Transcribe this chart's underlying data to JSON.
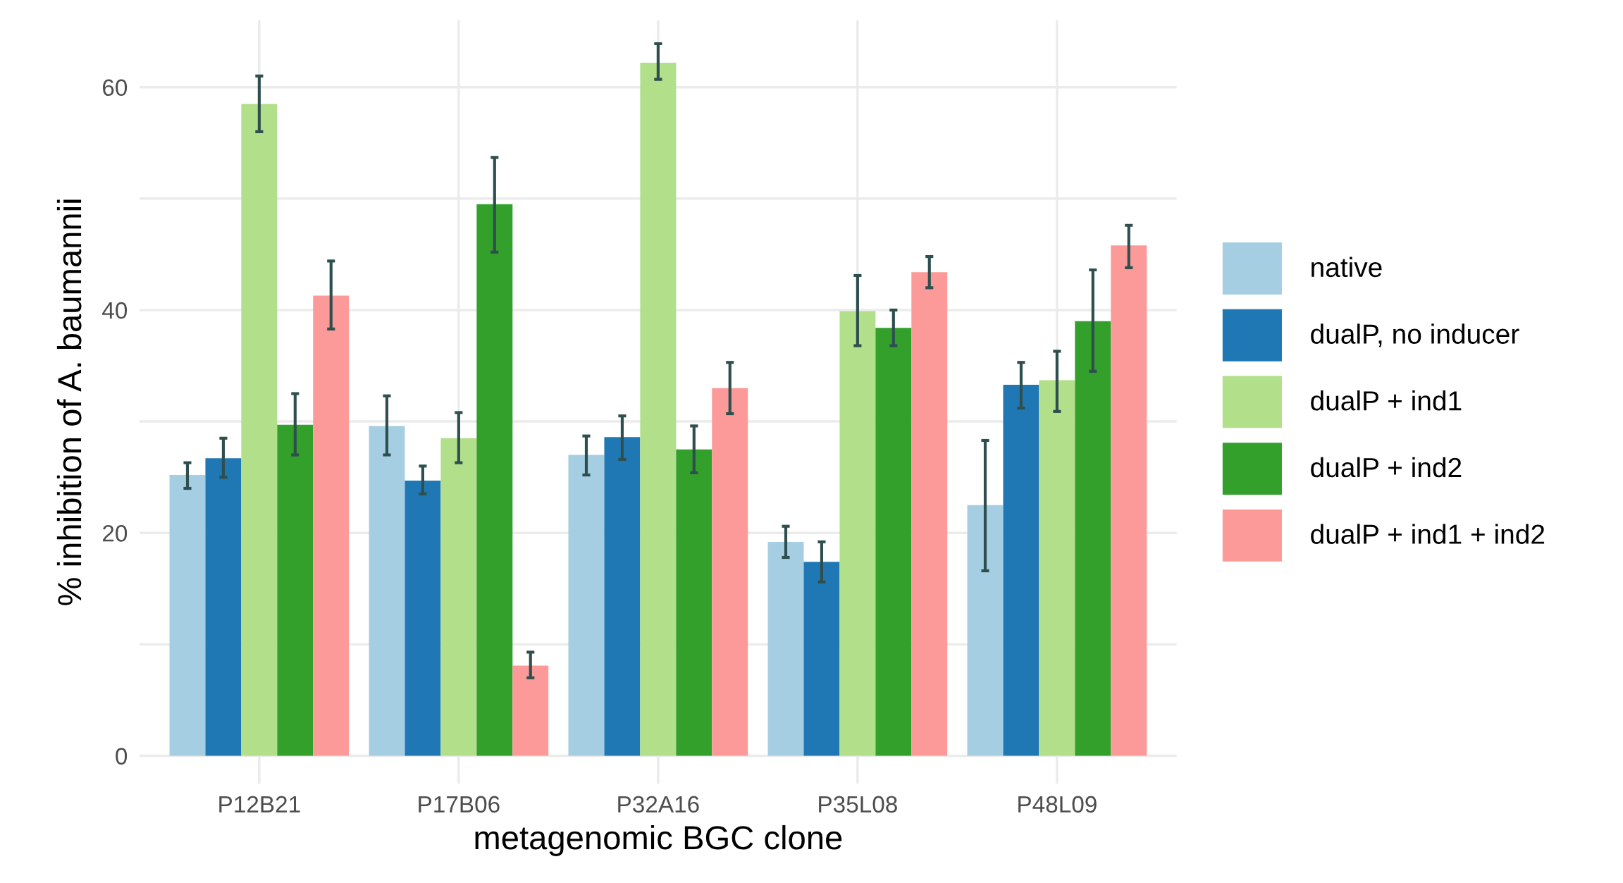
{
  "chart_data": {
    "type": "bar",
    "xlabel": "metagenomic BGC clone",
    "ylabel": "% inhibition of A. baumannii",
    "categories": [
      "P12B21",
      "P17B06",
      "P32A16",
      "P35L08",
      "P48L09"
    ],
    "series": [
      {
        "name": "native",
        "color": "#a6cee3",
        "values": [
          25.2,
          29.6,
          27.0,
          19.2,
          22.5
        ],
        "errors": [
          [
            24.0,
            26.3
          ],
          [
            27.0,
            32.3
          ],
          [
            25.2,
            28.7
          ],
          [
            17.8,
            20.6
          ],
          [
            16.6,
            28.3
          ]
        ]
      },
      {
        "name": "dualP, no inducer",
        "color": "#1f78b4",
        "values": [
          26.7,
          24.7,
          28.6,
          17.4,
          33.3
        ],
        "errors": [
          [
            25.0,
            28.5
          ],
          [
            23.5,
            26.0
          ],
          [
            26.6,
            30.5
          ],
          [
            15.6,
            19.2
          ],
          [
            31.2,
            35.3
          ]
        ]
      },
      {
        "name": "dualP + ind1",
        "color": "#b2df8a",
        "values": [
          58.5,
          28.5,
          62.2,
          39.9,
          33.7
        ],
        "errors": [
          [
            56.0,
            61.0
          ],
          [
            26.3,
            30.8
          ],
          [
            60.7,
            63.9
          ],
          [
            36.8,
            43.1
          ],
          [
            30.9,
            36.3
          ]
        ]
      },
      {
        "name": "dualP + ind2",
        "color": "#33a02c",
        "values": [
          29.7,
          49.5,
          27.5,
          38.4,
          39.0
        ],
        "errors": [
          [
            27.0,
            32.5
          ],
          [
            45.2,
            53.7
          ],
          [
            25.4,
            29.6
          ],
          [
            36.8,
            40.0
          ],
          [
            34.5,
            43.6
          ]
        ]
      },
      {
        "name": "dualP + ind1 + ind2",
        "color": "#fb9a99",
        "values": [
          41.3,
          8.1,
          33.0,
          43.4,
          45.8
        ],
        "errors": [
          [
            38.3,
            44.4
          ],
          [
            7.0,
            9.3
          ],
          [
            30.7,
            35.3
          ],
          [
            42.0,
            44.8
          ],
          [
            43.8,
            47.6
          ]
        ]
      }
    ],
    "ylim": [
      -2.5,
      66
    ],
    "yticks": [
      0,
      {
        "value": 10,
        "label": null
      },
      20,
      {
        "value": 30,
        "label": null
      },
      40,
      {
        "value": 50,
        "label": null
      },
      60
    ],
    "grid": true,
    "legend": "right"
  }
}
